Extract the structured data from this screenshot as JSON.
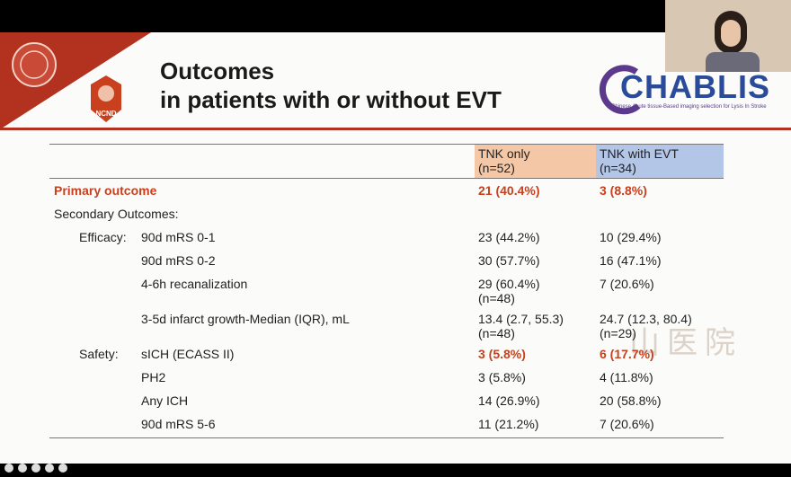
{
  "header": {
    "title_lines": [
      "Outcomes",
      "in patients with or without EVT"
    ],
    "left_logo": "NCND",
    "right_logo": "CHABLIS",
    "right_logo_subtitle": "Chinese Acute tissue-Based imaging selection for Lysis In Stroke"
  },
  "watermark": "山医院",
  "table": {
    "columns": [
      {
        "lines": [
          "TNK only",
          "(n=52)"
        ],
        "color": "#f4c7a6"
      },
      {
        "lines": [
          "TNK with EVT",
          "(n=34)"
        ],
        "color": "#b4c6e7"
      }
    ],
    "rows": [
      {
        "label": "Primary outcome",
        "emphasis": "all",
        "cells": [
          [
            "21 (40.4%)"
          ],
          [
            "3 (8.8%)"
          ]
        ]
      },
      {
        "label": "Secondary Outcomes:",
        "cells": [
          [],
          []
        ]
      },
      {
        "group": "Efficacy:",
        "label": "90d mRS 0-1",
        "cells": [
          [
            "23 (44.2%)"
          ],
          [
            "10 (29.4%)"
          ]
        ]
      },
      {
        "label": "90d mRS 0-2",
        "indent": true,
        "cells": [
          [
            "30 (57.7%)"
          ],
          [
            "16 (47.1%)"
          ]
        ]
      },
      {
        "label": "4-6h recanalization",
        "indent": true,
        "cells": [
          [
            "29 (60.4%)",
            "(n=48)"
          ],
          [
            "7 (20.6%)"
          ]
        ]
      },
      {
        "label": "3-5d infarct growth-Median (IQR), mL",
        "indent": true,
        "cells": [
          [
            "13.4 (2.7, 55.3)",
            "(n=48)"
          ],
          [
            "24.7 (12.3, 80.4)",
            "(n=29)"
          ]
        ]
      },
      {
        "group": "Safety:",
        "label": "sICH (ECASS II)",
        "emphasis": "values",
        "cells": [
          [
            "3 (5.8%)"
          ],
          [
            "6 (17.7%)"
          ]
        ]
      },
      {
        "label": "PH2",
        "indent": true,
        "cells": [
          [
            "3 (5.8%)"
          ],
          [
            "4 (11.8%)"
          ]
        ]
      },
      {
        "label": "Any ICH",
        "indent": true,
        "cells": [
          [
            "14 (26.9%)"
          ],
          [
            "20 (58.8%)"
          ]
        ]
      },
      {
        "label": "90d mRS 5-6",
        "indent": true,
        "cells": [
          [
            "11 (21.2%)"
          ],
          [
            "7 (20.6%)"
          ]
        ]
      }
    ]
  }
}
